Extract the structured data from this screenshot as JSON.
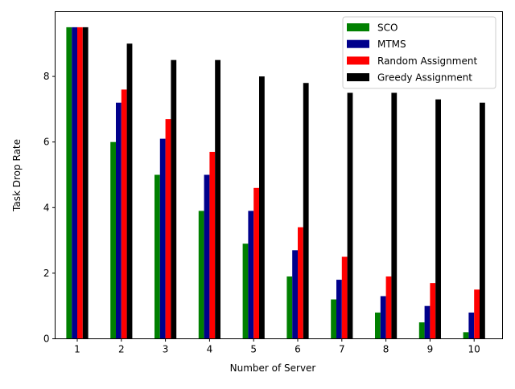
{
  "chart_data": {
    "type": "bar",
    "title": "",
    "xlabel": "Number of Server",
    "ylabel": "Task Drop Rate",
    "categories": [
      "1",
      "2",
      "3",
      "4",
      "5",
      "6",
      "7",
      "8",
      "9",
      "10"
    ],
    "ylim": [
      0,
      9.975
    ],
    "yticks": [
      0,
      2,
      4,
      6,
      8
    ],
    "grid": false,
    "legend_position": "top-right",
    "series": [
      {
        "name": "SCO",
        "color": "#008000",
        "values": [
          9.5,
          6.0,
          5.0,
          3.9,
          2.9,
          1.9,
          1.2,
          0.8,
          0.5,
          0.2
        ]
      },
      {
        "name": "MTMS",
        "color": "#00008b",
        "values": [
          9.5,
          7.2,
          6.1,
          5.0,
          3.9,
          2.7,
          1.8,
          1.3,
          1.0,
          0.8
        ]
      },
      {
        "name": "Random Assignment",
        "color": "#ff0000",
        "values": [
          9.5,
          7.6,
          6.7,
          5.7,
          4.6,
          3.4,
          2.5,
          1.9,
          1.7,
          1.5
        ]
      },
      {
        "name": "Greedy Assignment",
        "color": "#000000",
        "values": [
          9.5,
          9.0,
          8.5,
          8.5,
          8.0,
          7.8,
          7.5,
          7.5,
          7.3,
          7.2
        ]
      }
    ]
  }
}
